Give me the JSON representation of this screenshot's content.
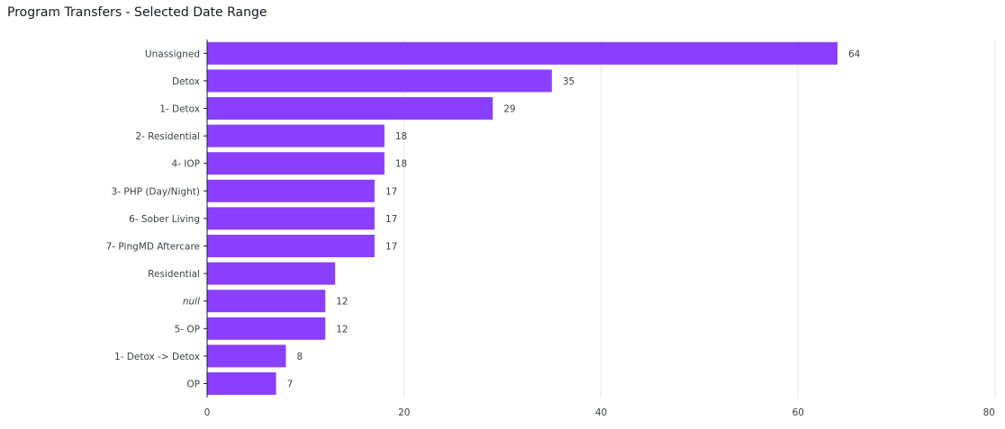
{
  "chart_data": {
    "type": "bar",
    "orientation": "horizontal",
    "title": "Program Transfers - Selected Date Range",
    "categories": [
      "Unassigned",
      "Detox",
      "1- Detox",
      "2- Residential",
      "4- IOP",
      "3- PHP (Day/Night)",
      "6- Sober Living",
      "7- PingMD Aftercare",
      "Residential",
      "null",
      "5- OP",
      "1- Detox -> Detox",
      "OP"
    ],
    "values": [
      64,
      35,
      29,
      18,
      18,
      17,
      17,
      17,
      13,
      12,
      12,
      8,
      7
    ],
    "value_labels": [
      "64",
      "35",
      "29",
      "18",
      "18",
      "17",
      "17",
      "17",
      "",
      "12",
      "12",
      "8",
      "7"
    ],
    "italic_categories": [
      "null"
    ],
    "xlim": [
      0,
      80
    ],
    "xticks": [
      0,
      20,
      40,
      60,
      80
    ],
    "xlabel": "",
    "ylabel": "",
    "grid": true,
    "bar_color": "#8a3ffc",
    "grid_color": "#e5e5e5"
  }
}
